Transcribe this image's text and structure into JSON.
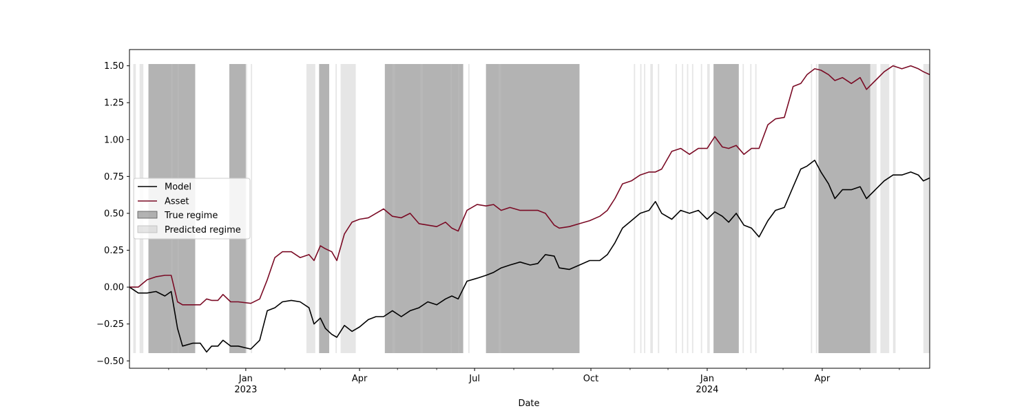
{
  "chart_data": {
    "type": "line",
    "title": "",
    "xlabel": "Date",
    "ylabel": "",
    "x_range": [
      "2022-10-01",
      "2024-06-25"
    ],
    "ylim": [
      -0.55,
      1.61
    ],
    "y_ticks": [
      -0.5,
      -0.25,
      0.0,
      0.25,
      0.5,
      0.75,
      1.0,
      1.25,
      1.5
    ],
    "y_tick_labels": [
      "−0.50",
      "−0.25",
      "0.00",
      "0.25",
      "0.50",
      "0.75",
      "1.00",
      "1.25",
      "1.50"
    ],
    "x_ticks": [
      {
        "date": "2023-01-01",
        "label": "Jan",
        "sublabel": "2023"
      },
      {
        "date": "2023-04-01",
        "label": "Apr",
        "sublabel": ""
      },
      {
        "date": "2023-07-01",
        "label": "Jul",
        "sublabel": ""
      },
      {
        "date": "2023-10-01",
        "label": "Oct",
        "sublabel": ""
      },
      {
        "date": "2024-01-01",
        "label": "Jan",
        "sublabel": "2024"
      },
      {
        "date": "2024-04-01",
        "label": "Apr",
        "sublabel": ""
      }
    ],
    "grid": false,
    "legend_position": "center-left",
    "series": [
      {
        "name": "Model",
        "color": "#000000",
        "points": [
          [
            "2022-10-01",
            0.0
          ],
          [
            "2022-10-08",
            -0.04
          ],
          [
            "2022-10-15",
            -0.04
          ],
          [
            "2022-10-22",
            -0.03
          ],
          [
            "2022-10-29",
            -0.06
          ],
          [
            "2022-11-03",
            -0.03
          ],
          [
            "2022-11-08",
            -0.28
          ],
          [
            "2022-11-12",
            -0.4
          ],
          [
            "2022-11-20",
            -0.38
          ],
          [
            "2022-11-26",
            -0.38
          ],
          [
            "2022-12-01",
            -0.44
          ],
          [
            "2022-12-05",
            -0.4
          ],
          [
            "2022-12-10",
            -0.4
          ],
          [
            "2022-12-14",
            -0.36
          ],
          [
            "2022-12-20",
            -0.4
          ],
          [
            "2022-12-26",
            -0.4
          ],
          [
            "2023-01-05",
            -0.42
          ],
          [
            "2023-01-12",
            -0.36
          ],
          [
            "2023-01-18",
            -0.16
          ],
          [
            "2023-01-24",
            -0.14
          ],
          [
            "2023-01-30",
            -0.1
          ],
          [
            "2023-02-06",
            -0.09
          ],
          [
            "2023-02-13",
            -0.1
          ],
          [
            "2023-02-20",
            -0.14
          ],
          [
            "2023-02-24",
            -0.25
          ],
          [
            "2023-03-01",
            -0.21
          ],
          [
            "2023-03-05",
            -0.28
          ],
          [
            "2023-03-10",
            -0.32
          ],
          [
            "2023-03-14",
            -0.34
          ],
          [
            "2023-03-20",
            -0.26
          ],
          [
            "2023-03-26",
            -0.3
          ],
          [
            "2023-04-01",
            -0.27
          ],
          [
            "2023-04-08",
            -0.22
          ],
          [
            "2023-04-14",
            -0.2
          ],
          [
            "2023-04-20",
            -0.2
          ],
          [
            "2023-04-27",
            -0.16
          ],
          [
            "2023-05-04",
            -0.2
          ],
          [
            "2023-05-11",
            -0.16
          ],
          [
            "2023-05-18",
            -0.14
          ],
          [
            "2023-05-25",
            -0.1
          ],
          [
            "2023-06-01",
            -0.12
          ],
          [
            "2023-06-08",
            -0.08
          ],
          [
            "2023-06-13",
            -0.06
          ],
          [
            "2023-06-18",
            -0.08
          ],
          [
            "2023-06-25",
            0.04
          ],
          [
            "2023-07-03",
            0.06
          ],
          [
            "2023-07-10",
            0.08
          ],
          [
            "2023-07-16",
            0.1
          ],
          [
            "2023-07-22",
            0.13
          ],
          [
            "2023-07-29",
            0.15
          ],
          [
            "2023-08-06",
            0.17
          ],
          [
            "2023-08-14",
            0.15
          ],
          [
            "2023-08-20",
            0.16
          ],
          [
            "2023-08-26",
            0.22
          ],
          [
            "2023-09-02",
            0.21
          ],
          [
            "2023-09-06",
            0.13
          ],
          [
            "2023-09-14",
            0.12
          ],
          [
            "2023-09-22",
            0.15
          ],
          [
            "2023-09-30",
            0.18
          ],
          [
            "2023-10-08",
            0.18
          ],
          [
            "2023-10-14",
            0.22
          ],
          [
            "2023-10-20",
            0.3
          ],
          [
            "2023-10-26",
            0.4
          ],
          [
            "2023-11-02",
            0.45
          ],
          [
            "2023-11-09",
            0.5
          ],
          [
            "2023-11-16",
            0.52
          ],
          [
            "2023-11-21",
            0.58
          ],
          [
            "2023-11-26",
            0.5
          ],
          [
            "2023-12-04",
            0.46
          ],
          [
            "2023-12-11",
            0.52
          ],
          [
            "2023-12-18",
            0.5
          ],
          [
            "2023-12-25",
            0.52
          ],
          [
            "2024-01-01",
            0.46
          ],
          [
            "2024-01-07",
            0.51
          ],
          [
            "2024-01-13",
            0.48
          ],
          [
            "2024-01-18",
            0.44
          ],
          [
            "2024-01-24",
            0.5
          ],
          [
            "2024-01-30",
            0.42
          ],
          [
            "2024-02-05",
            0.4
          ],
          [
            "2024-02-11",
            0.34
          ],
          [
            "2024-02-18",
            0.45
          ],
          [
            "2024-02-24",
            0.52
          ],
          [
            "2024-03-02",
            0.54
          ],
          [
            "2024-03-09",
            0.68
          ],
          [
            "2024-03-15",
            0.8
          ],
          [
            "2024-03-20",
            0.82
          ],
          [
            "2024-03-26",
            0.86
          ],
          [
            "2024-03-31",
            0.78
          ],
          [
            "2024-04-06",
            0.7
          ],
          [
            "2024-04-11",
            0.6
          ],
          [
            "2024-04-17",
            0.66
          ],
          [
            "2024-04-24",
            0.66
          ],
          [
            "2024-05-01",
            0.68
          ],
          [
            "2024-05-06",
            0.6
          ],
          [
            "2024-05-13",
            0.66
          ],
          [
            "2024-05-20",
            0.72
          ],
          [
            "2024-05-27",
            0.76
          ],
          [
            "2024-06-03",
            0.76
          ],
          [
            "2024-06-10",
            0.78
          ],
          [
            "2024-06-16",
            0.76
          ],
          [
            "2024-06-20",
            0.72
          ],
          [
            "2024-06-25",
            0.74
          ]
        ]
      },
      {
        "name": "Asset",
        "color": "#7a0a24",
        "points": [
          [
            "2022-10-01",
            0.0
          ],
          [
            "2022-10-08",
            0.0
          ],
          [
            "2022-10-15",
            0.05
          ],
          [
            "2022-10-22",
            0.07
          ],
          [
            "2022-10-29",
            0.08
          ],
          [
            "2022-11-03",
            0.08
          ],
          [
            "2022-11-08",
            -0.1
          ],
          [
            "2022-11-12",
            -0.12
          ],
          [
            "2022-11-20",
            -0.12
          ],
          [
            "2022-11-26",
            -0.12
          ],
          [
            "2022-12-01",
            -0.08
          ],
          [
            "2022-12-05",
            -0.09
          ],
          [
            "2022-12-10",
            -0.09
          ],
          [
            "2022-12-14",
            -0.05
          ],
          [
            "2022-12-20",
            -0.1
          ],
          [
            "2022-12-26",
            -0.1
          ],
          [
            "2023-01-05",
            -0.11
          ],
          [
            "2023-01-12",
            -0.08
          ],
          [
            "2023-01-18",
            0.05
          ],
          [
            "2023-01-24",
            0.2
          ],
          [
            "2023-01-30",
            0.24
          ],
          [
            "2023-02-06",
            0.24
          ],
          [
            "2023-02-13",
            0.2
          ],
          [
            "2023-02-20",
            0.22
          ],
          [
            "2023-02-24",
            0.18
          ],
          [
            "2023-03-01",
            0.28
          ],
          [
            "2023-03-05",
            0.26
          ],
          [
            "2023-03-10",
            0.24
          ],
          [
            "2023-03-14",
            0.18
          ],
          [
            "2023-03-20",
            0.36
          ],
          [
            "2023-03-26",
            0.44
          ],
          [
            "2023-04-01",
            0.46
          ],
          [
            "2023-04-08",
            0.47
          ],
          [
            "2023-04-14",
            0.5
          ],
          [
            "2023-04-20",
            0.53
          ],
          [
            "2023-04-27",
            0.48
          ],
          [
            "2023-05-04",
            0.47
          ],
          [
            "2023-05-11",
            0.5
          ],
          [
            "2023-05-18",
            0.43
          ],
          [
            "2023-05-25",
            0.42
          ],
          [
            "2023-06-01",
            0.41
          ],
          [
            "2023-06-08",
            0.44
          ],
          [
            "2023-06-13",
            0.4
          ],
          [
            "2023-06-18",
            0.38
          ],
          [
            "2023-06-25",
            0.52
          ],
          [
            "2023-07-03",
            0.56
          ],
          [
            "2023-07-10",
            0.55
          ],
          [
            "2023-07-16",
            0.56
          ],
          [
            "2023-07-22",
            0.52
          ],
          [
            "2023-07-29",
            0.54
          ],
          [
            "2023-08-06",
            0.52
          ],
          [
            "2023-08-14",
            0.52
          ],
          [
            "2023-08-20",
            0.52
          ],
          [
            "2023-08-26",
            0.5
          ],
          [
            "2023-09-02",
            0.42
          ],
          [
            "2023-09-06",
            0.4
          ],
          [
            "2023-09-14",
            0.41
          ],
          [
            "2023-09-22",
            0.43
          ],
          [
            "2023-09-30",
            0.45
          ],
          [
            "2023-10-08",
            0.48
          ],
          [
            "2023-10-14",
            0.52
          ],
          [
            "2023-10-20",
            0.6
          ],
          [
            "2023-10-26",
            0.7
          ],
          [
            "2023-11-02",
            0.72
          ],
          [
            "2023-11-09",
            0.76
          ],
          [
            "2023-11-16",
            0.78
          ],
          [
            "2023-11-21",
            0.78
          ],
          [
            "2023-11-26",
            0.8
          ],
          [
            "2023-12-04",
            0.92
          ],
          [
            "2023-12-11",
            0.94
          ],
          [
            "2023-12-18",
            0.9
          ],
          [
            "2023-12-25",
            0.94
          ],
          [
            "2024-01-01",
            0.94
          ],
          [
            "2024-01-07",
            1.02
          ],
          [
            "2024-01-13",
            0.95
          ],
          [
            "2024-01-18",
            0.94
          ],
          [
            "2024-01-24",
            0.96
          ],
          [
            "2024-01-30",
            0.9
          ],
          [
            "2024-02-05",
            0.94
          ],
          [
            "2024-02-11",
            0.94
          ],
          [
            "2024-02-18",
            1.1
          ],
          [
            "2024-02-24",
            1.14
          ],
          [
            "2024-03-02",
            1.15
          ],
          [
            "2024-03-09",
            1.36
          ],
          [
            "2024-03-15",
            1.38
          ],
          [
            "2024-03-20",
            1.44
          ],
          [
            "2024-03-26",
            1.48
          ],
          [
            "2024-03-31",
            1.47
          ],
          [
            "2024-04-06",
            1.44
          ],
          [
            "2024-04-11",
            1.4
          ],
          [
            "2024-04-17",
            1.42
          ],
          [
            "2024-04-24",
            1.38
          ],
          [
            "2024-05-01",
            1.42
          ],
          [
            "2024-05-06",
            1.34
          ],
          [
            "2024-05-13",
            1.4
          ],
          [
            "2024-05-20",
            1.46
          ],
          [
            "2024-05-27",
            1.5
          ],
          [
            "2024-06-03",
            1.48
          ],
          [
            "2024-06-10",
            1.5
          ],
          [
            "2024-06-16",
            1.48
          ],
          [
            "2024-06-20",
            1.46
          ],
          [
            "2024-06-25",
            1.44
          ]
        ]
      }
    ],
    "regimes": [
      {
        "name": "True regime",
        "color": "#808080",
        "opacity": 0.6,
        "spans": [
          [
            "2022-10-16",
            "2022-11-22"
          ],
          [
            "2022-12-19",
            "2023-01-01"
          ],
          [
            "2023-02-28",
            "2023-03-08"
          ],
          [
            "2023-04-21",
            "2023-06-22"
          ],
          [
            "2023-07-10",
            "2023-09-22"
          ],
          [
            "2024-01-06",
            "2024-01-26"
          ],
          [
            "2024-03-29",
            "2024-05-09"
          ]
        ]
      },
      {
        "name": "Predicted regime",
        "color": "#c0c0c0",
        "opacity": 0.4,
        "spans": [
          [
            "2022-10-04",
            "2022-10-06"
          ],
          [
            "2022-10-09",
            "2022-10-12"
          ],
          [
            "2022-11-03",
            "2022-11-04"
          ],
          [
            "2022-11-08",
            "2022-11-09"
          ],
          [
            "2023-01-01",
            "2023-01-02"
          ],
          [
            "2023-01-05",
            "2023-01-06"
          ],
          [
            "2023-02-18",
            "2023-02-25"
          ],
          [
            "2023-03-13",
            "2023-03-14"
          ],
          [
            "2023-03-17",
            "2023-03-29"
          ],
          [
            "2023-04-27",
            "2023-04-29"
          ],
          [
            "2023-05-19",
            "2023-05-21"
          ],
          [
            "2023-06-12",
            "2023-06-13"
          ],
          [
            "2023-06-18",
            "2023-06-19"
          ],
          [
            "2023-06-26",
            "2023-06-27"
          ],
          [
            "2023-07-20",
            "2023-07-22"
          ],
          [
            "2023-11-04",
            "2023-11-05"
          ],
          [
            "2023-11-09",
            "2023-11-10"
          ],
          [
            "2023-11-12",
            "2023-11-13"
          ],
          [
            "2023-11-17",
            "2023-11-19"
          ],
          [
            "2023-11-23",
            "2023-11-24"
          ],
          [
            "2023-12-07",
            "2023-12-08"
          ],
          [
            "2023-12-12",
            "2023-12-13"
          ],
          [
            "2023-12-16",
            "2023-12-17"
          ],
          [
            "2023-12-20",
            "2023-12-21"
          ],
          [
            "2023-12-27",
            "2023-12-28"
          ],
          [
            "2024-01-01",
            "2024-01-03"
          ],
          [
            "2024-01-29",
            "2024-01-30"
          ],
          [
            "2024-02-04",
            "2024-02-05"
          ],
          [
            "2024-02-08",
            "2024-02-09"
          ],
          [
            "2024-03-23",
            "2024-03-24"
          ],
          [
            "2024-03-27",
            "2024-03-28"
          ],
          [
            "2024-05-09",
            "2024-05-14"
          ],
          [
            "2024-05-17",
            "2024-05-24"
          ],
          [
            "2024-05-27",
            "2024-05-29"
          ],
          [
            "2024-06-20",
            "2024-06-25"
          ]
        ]
      }
    ]
  }
}
